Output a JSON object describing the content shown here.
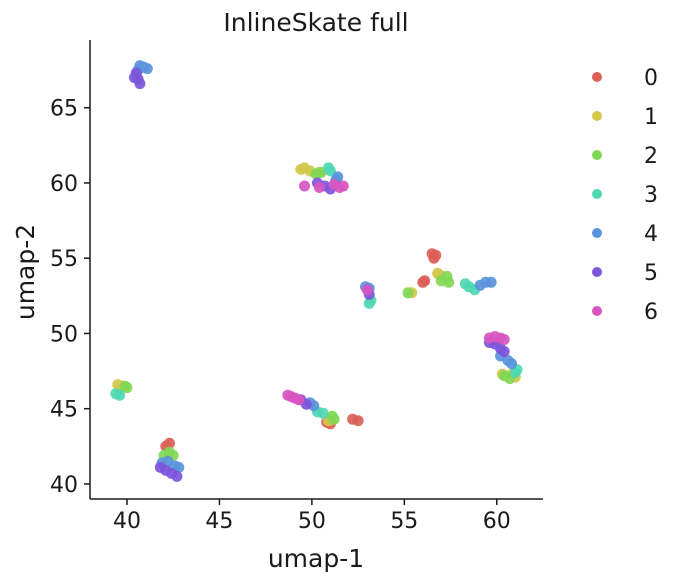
{
  "chart_data": {
    "type": "scatter",
    "title": "InlineSkate full",
    "xlabel": "umap-1",
    "ylabel": "umap-2",
    "xlim": [
      38.0,
      62.5
    ],
    "ylim": [
      39.0,
      69.5
    ],
    "xticks": [
      40,
      45,
      50,
      55,
      60
    ],
    "yticks": [
      40,
      45,
      50,
      55,
      60,
      65
    ],
    "grid": false,
    "legend_position": "right",
    "series": [
      {
        "name": "0",
        "color": "#db5f57",
        "points": [
          [
            42.3,
            42.7
          ],
          [
            42.1,
            42.5
          ],
          [
            52.2,
            44.3
          ],
          [
            52.5,
            44.2
          ],
          [
            51.0,
            44.0
          ],
          [
            50.8,
            44.1
          ],
          [
            56.5,
            55.3
          ],
          [
            56.6,
            55.0
          ],
          [
            56.1,
            53.5
          ],
          [
            56.0,
            53.4
          ],
          [
            56.7,
            55.2
          ]
        ]
      },
      {
        "name": "1",
        "color": "#d3c84a",
        "points": [
          [
            39.5,
            46.6
          ],
          [
            39.8,
            46.5
          ],
          [
            39.6,
            46.3
          ],
          [
            49.4,
            60.9
          ],
          [
            49.6,
            61.0
          ],
          [
            49.9,
            60.8
          ],
          [
            50.4,
            60.7
          ],
          [
            51.1,
            44.4
          ],
          [
            50.9,
            44.2
          ],
          [
            55.4,
            52.7
          ],
          [
            56.8,
            54.0
          ],
          [
            56.9,
            53.9
          ],
          [
            60.3,
            47.3
          ],
          [
            60.8,
            47.3
          ],
          [
            61.0,
            47.1
          ]
        ]
      },
      {
        "name": "2",
        "color": "#80d855",
        "points": [
          [
            39.9,
            46.5
          ],
          [
            40.0,
            46.4
          ],
          [
            42.0,
            41.9
          ],
          [
            42.3,
            42.1
          ],
          [
            42.5,
            41.9
          ],
          [
            50.2,
            60.6
          ],
          [
            50.5,
            60.7
          ],
          [
            51.1,
            44.5
          ],
          [
            51.2,
            44.3
          ],
          [
            55.2,
            52.7
          ],
          [
            57.3,
            53.8
          ],
          [
            57.0,
            53.5
          ],
          [
            57.4,
            53.4
          ],
          [
            60.4,
            47.2
          ],
          [
            60.7,
            47.0
          ]
        ]
      },
      {
        "name": "3",
        "color": "#4fd8b3",
        "points": [
          [
            39.6,
            45.9
          ],
          [
            39.4,
            46.0
          ],
          [
            50.3,
            44.8
          ],
          [
            50.6,
            44.7
          ],
          [
            50.9,
            61.0
          ],
          [
            51.0,
            60.8
          ],
          [
            53.2,
            52.2
          ],
          [
            53.1,
            52.0
          ],
          [
            58.3,
            53.3
          ],
          [
            58.5,
            53.1
          ],
          [
            58.8,
            52.9
          ],
          [
            61.1,
            47.6
          ],
          [
            61.0,
            47.4
          ]
        ]
      },
      {
        "name": "4",
        "color": "#5a94db",
        "points": [
          [
            40.7,
            67.8
          ],
          [
            40.9,
            67.7
          ],
          [
            41.1,
            67.6
          ],
          [
            40.6,
            67.5
          ],
          [
            41.9,
            41.4
          ],
          [
            42.2,
            41.5
          ],
          [
            42.6,
            41.2
          ],
          [
            42.8,
            41.1
          ],
          [
            49.9,
            45.4
          ],
          [
            50.1,
            45.2
          ],
          [
            51.3,
            60.2
          ],
          [
            51.4,
            60.4
          ],
          [
            52.9,
            53.1
          ],
          [
            53.1,
            53.0
          ],
          [
            59.1,
            53.2
          ],
          [
            59.4,
            53.4
          ],
          [
            59.7,
            53.4
          ],
          [
            60.2,
            48.5
          ],
          [
            60.6,
            48.2
          ],
          [
            60.8,
            48.0
          ]
        ]
      },
      {
        "name": "5",
        "color": "#7c55db",
        "points": [
          [
            40.5,
            67.3
          ],
          [
            40.6,
            66.9
          ],
          [
            40.7,
            66.6
          ],
          [
            40.4,
            67.0
          ],
          [
            41.8,
            41.1
          ],
          [
            42.1,
            40.9
          ],
          [
            42.4,
            40.7
          ],
          [
            42.7,
            40.5
          ],
          [
            49.4,
            45.6
          ],
          [
            49.7,
            45.3
          ],
          [
            50.3,
            60.0
          ],
          [
            50.7,
            59.8
          ],
          [
            51.0,
            59.6
          ],
          [
            53.1,
            52.6
          ],
          [
            59.6,
            49.4
          ],
          [
            59.9,
            49.3
          ],
          [
            60.2,
            49.0
          ],
          [
            60.4,
            48.8
          ]
        ]
      },
      {
        "name": "6",
        "color": "#d855c0",
        "points": [
          [
            48.7,
            45.9
          ],
          [
            48.9,
            45.8
          ],
          [
            49.1,
            45.7
          ],
          [
            49.3,
            45.6
          ],
          [
            49.6,
            59.8
          ],
          [
            50.4,
            59.7
          ],
          [
            51.2,
            59.9
          ],
          [
            51.5,
            59.7
          ],
          [
            51.7,
            59.8
          ],
          [
            53.0,
            52.9
          ],
          [
            59.6,
            49.7
          ],
          [
            59.9,
            49.8
          ],
          [
            60.2,
            49.7
          ],
          [
            60.4,
            49.6
          ]
        ]
      }
    ]
  }
}
